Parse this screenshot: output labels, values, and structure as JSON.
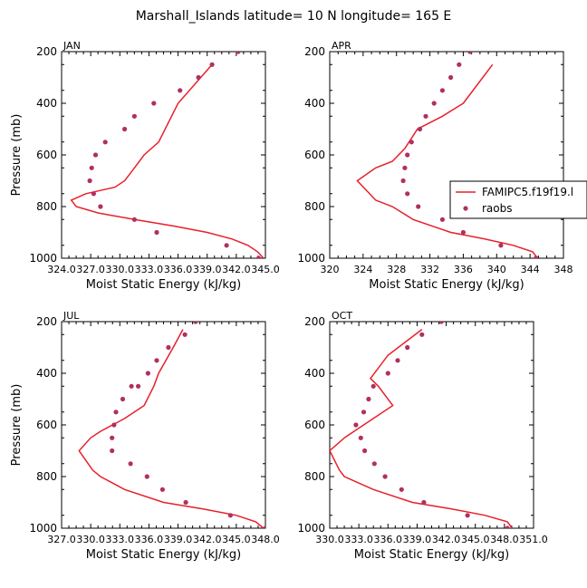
{
  "figure": {
    "title": "Marshall_Islands   latitude= 10 N longitude= 165 E"
  },
  "legend": {
    "model": "FAMIPC5.f19f19.l",
    "obs": "raobs"
  },
  "colors": {
    "model": "#e8202a",
    "obs": "#b0305f"
  },
  "chart_data": [
    {
      "type": "line",
      "month": "JAN",
      "xlabel": "Moist Static Energy (kJ/kg)",
      "ylabel": "Pressure (mb)",
      "xlim": [
        324.0,
        345.0
      ],
      "ylim": [
        1000,
        200
      ],
      "y_reversed": true,
      "xticks": [
        324.0,
        327.0,
        330.0,
        333.0,
        336.0,
        339.0,
        342.0,
        345.0
      ],
      "xtick_labels": [
        "324.0",
        "327.0",
        "330.0",
        "333.0",
        "336.0",
        "339.0",
        "342.0",
        "345.0"
      ],
      "yticks": [
        200,
        400,
        600,
        800,
        1000
      ],
      "series": [
        {
          "kind": "line",
          "x": [
            344.8,
            344.2,
            343.2,
            341.5,
            339.0,
            335.5,
            331.5,
            327.8,
            325.5,
            325.0,
            326.5,
            329.5,
            330.5,
            331.0,
            331.5,
            332.5,
            334.0,
            336.0,
            339.5
          ],
          "y": [
            1000,
            975,
            950,
            925,
            900,
            875,
            850,
            825,
            800,
            775,
            750,
            725,
            700,
            675,
            650,
            600,
            550,
            400,
            250
          ]
        },
        {
          "kind": "scatter",
          "x": [
            344.3,
            341.0,
            333.8,
            331.5,
            328.0,
            327.3,
            326.9,
            327.1,
            327.5,
            328.5,
            330.5,
            331.5,
            333.5,
            336.2,
            338.1,
            339.5,
            342.2
          ],
          "y": [
            1000,
            950,
            900,
            850,
            800,
            750,
            700,
            650,
            600,
            550,
            500,
            450,
            400,
            350,
            300,
            250,
            200
          ]
        }
      ]
    },
    {
      "type": "line",
      "month": "APR",
      "xlabel": "Moist Static Energy (kJ/kg)",
      "ylabel": "",
      "xlim": [
        320,
        348
      ],
      "ylim": [
        1000,
        200
      ],
      "y_reversed": true,
      "xticks": [
        320,
        324,
        328,
        332,
        336,
        340,
        344,
        348
      ],
      "xtick_labels": [
        "320",
        "324",
        "328",
        "332",
        "336",
        "340",
        "344",
        "348"
      ],
      "yticks": [
        200,
        400,
        600,
        800,
        1000
      ],
      "series": [
        {
          "kind": "line",
          "x": [
            344.9,
            344.3,
            342.0,
            338.5,
            334.5,
            330.0,
            327.5,
            325.5,
            323.3,
            325.5,
            327.5,
            329.0,
            330.5,
            333.5,
            336.0,
            339.5
          ],
          "y": [
            1000,
            975,
            950,
            925,
            900,
            850,
            800,
            775,
            700,
            650,
            625,
            575,
            500,
            450,
            400,
            250
          ]
        },
        {
          "kind": "scatter",
          "x": [
            344.7,
            340.5,
            336.0,
            333.5,
            330.6,
            329.3,
            328.8,
            329.0,
            329.3,
            329.8,
            330.8,
            331.5,
            332.5,
            333.5,
            334.5,
            335.5,
            336.8,
            338.0
          ],
          "y": [
            1000,
            950,
            900,
            850,
            800,
            750,
            700,
            650,
            600,
            550,
            500,
            450,
            400,
            350,
            300,
            250,
            200,
            150
          ]
        }
      ]
    },
    {
      "type": "line",
      "month": "JUL",
      "xlabel": "Moist Static Energy (kJ/kg)",
      "ylabel": "Pressure (mb)",
      "xlim": [
        327.0,
        348.0
      ],
      "ylim": [
        1000,
        200
      ],
      "y_reversed": true,
      "xticks": [
        327.0,
        330.0,
        333.0,
        336.0,
        339.0,
        342.0,
        345.0,
        348.0
      ],
      "xtick_labels": [
        "327.0",
        "330.0",
        "333.0",
        "336.0",
        "339.0",
        "342.0",
        "345.0",
        "348.0"
      ],
      "yticks": [
        200,
        400,
        600,
        800,
        1000
      ],
      "series": [
        {
          "kind": "line",
          "x": [
            347.8,
            347.0,
            345.0,
            341.5,
            337.5,
            333.5,
            331.0,
            330.2,
            328.8,
            330.0,
            331.0,
            333.5,
            335.5,
            336.5,
            337.0,
            338.5,
            339.5
          ],
          "y": [
            1000,
            975,
            950,
            925,
            900,
            850,
            800,
            775,
            700,
            650,
            625,
            575,
            525,
            450,
            400,
            300,
            230
          ]
        },
        {
          "kind": "scatter",
          "x": [
            348.0,
            344.4,
            339.8,
            337.4,
            335.8,
            334.1,
            332.2,
            332.2,
            332.4,
            332.6,
            333.3,
            334.2,
            334.9,
            335.9,
            336.8,
            338.0,
            339.7,
            340.8
          ],
          "y": [
            1000,
            950,
            900,
            850,
            800,
            750,
            700,
            650,
            600,
            550,
            500,
            450,
            450,
            400,
            350,
            300,
            250,
            200
          ]
        }
      ]
    },
    {
      "type": "line",
      "month": "OCT",
      "xlabel": "Moist Static Energy (kJ/kg)",
      "ylabel": "",
      "xlim": [
        330.0,
        351.0
      ],
      "ylim": [
        1000,
        200
      ],
      "y_reversed": true,
      "xticks": [
        330.0,
        333.0,
        336.0,
        339.0,
        342.0,
        345.0,
        348.0,
        351.0
      ],
      "xtick_labels": [
        "330.0",
        "333.0",
        "336.0",
        "339.0",
        "342.0",
        "345.0",
        "348.0",
        "351.0"
      ],
      "yticks": [
        200,
        400,
        600,
        800,
        1000
      ],
      "series": [
        {
          "kind": "line",
          "x": [
            348.8,
            348.3,
            346.0,
            342.5,
            338.5,
            334.5,
            331.5,
            331.0,
            330.0,
            331.5,
            332.5,
            334.5,
            336.5,
            335.0,
            334.2,
            336.0,
            339.5
          ],
          "y": [
            1000,
            975,
            950,
            925,
            900,
            850,
            800,
            775,
            700,
            650,
            625,
            575,
            525,
            450,
            420,
            330,
            230
          ]
        },
        {
          "kind": "scatter",
          "x": [
            348.3,
            344.2,
            339.7,
            337.4,
            335.7,
            334.6,
            333.6,
            333.2,
            332.7,
            333.5,
            334.0,
            334.5,
            336.0,
            337.0,
            338.0,
            339.5,
            341.5
          ],
          "y": [
            1000,
            950,
            900,
            850,
            800,
            750,
            700,
            650,
            600,
            550,
            500,
            450,
            400,
            350,
            300,
            250,
            200
          ]
        }
      ]
    }
  ]
}
